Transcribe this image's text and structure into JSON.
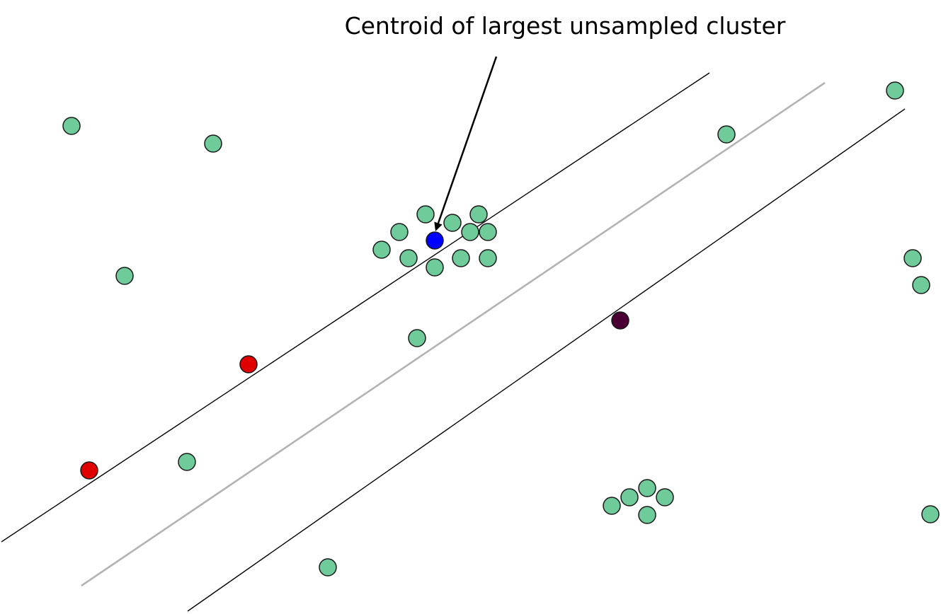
{
  "annotation": {
    "text": "Centroid of largest unsampled cluster"
  },
  "colors": {
    "background": "#ffffff",
    "unlabeled_point": "#6fcb9a",
    "selected_centroid": "#0000ff",
    "labeled_point_red": "#e00000",
    "labeled_point_dark": "#4a0033",
    "margin_line": "#000000",
    "decision_boundary": "#b3b3b3",
    "arrow": "#000000"
  },
  "legend_semantics": {
    "unlabeled_point_icon": "circle-icon",
    "centroid_icon": "circle-icon",
    "arrow_icon": "arrow-icon"
  }
}
